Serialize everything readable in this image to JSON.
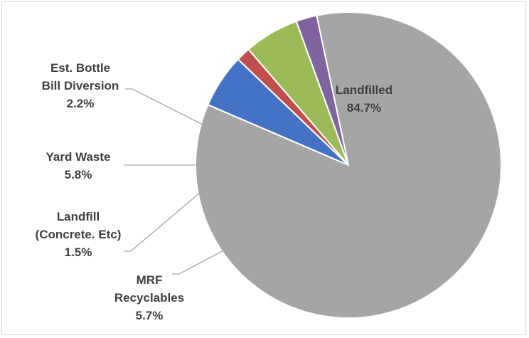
{
  "chart_data": {
    "type": "pie",
    "title": "",
    "slices": [
      {
        "label_lines": [
          "Landfilled"
        ],
        "value_text": "84.7%",
        "value": 84.7,
        "color": "#a5a5a5"
      },
      {
        "label_lines": [
          "MRF",
          "Recyclables"
        ],
        "value_text": "5.7%",
        "value": 5.7,
        "color": "#4472c4"
      },
      {
        "label_lines": [
          "Landfill",
          "(Concrete. Etc)"
        ],
        "value_text": "1.5%",
        "value": 1.5,
        "color": "#c0504d"
      },
      {
        "label_lines": [
          "Yard Waste"
        ],
        "value_text": "5.8%",
        "value": 5.8,
        "color": "#9bbb59"
      },
      {
        "label_lines": [
          "Est. Bottle",
          "Bill Diversion"
        ],
        "value_text": "2.2%",
        "value": 2.2,
        "color": "#8064a2"
      }
    ],
    "start_angle_deg": -12,
    "legend": "none",
    "label_placement": "outside-with-leaders"
  }
}
